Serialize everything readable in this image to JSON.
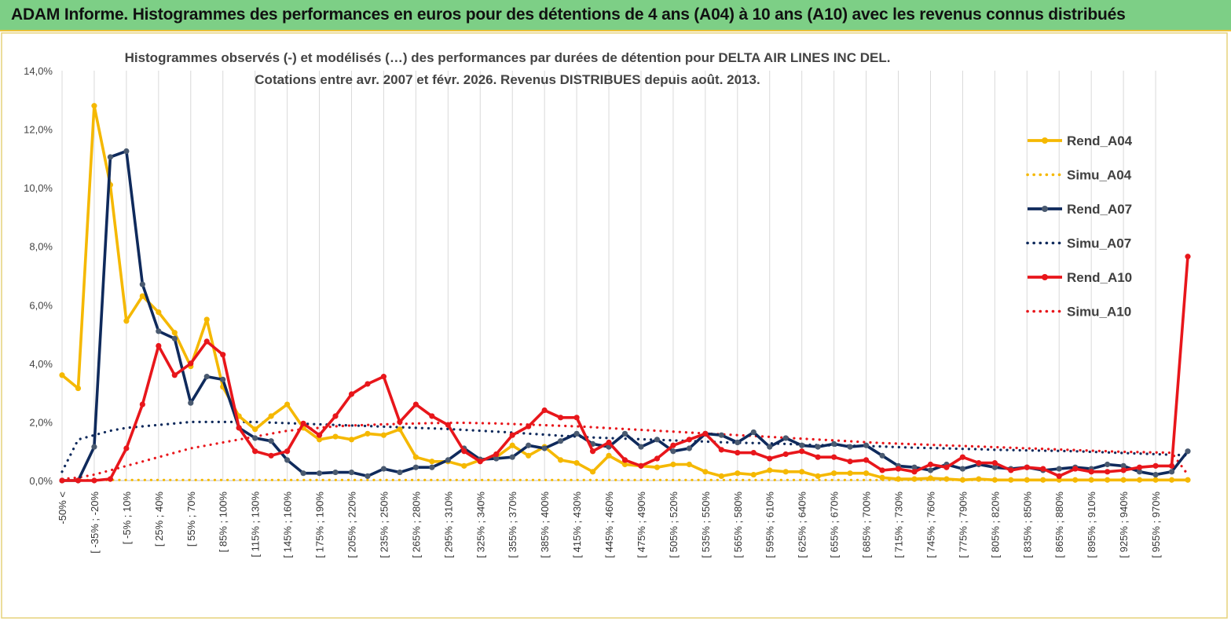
{
  "banner": {
    "title": "ADAM Informe. Histogrammes des performances en euros pour des détentions de 4 ans (A04) à 10 ans (A10) avec les revenus connus distribués"
  },
  "colors": {
    "a04": "#f5b800",
    "a07": "#0f2a5c",
    "a10": "#e8161b",
    "banner": "#7dcf86",
    "grid": "#d9d9d9",
    "marker07": "#4a5a70"
  },
  "chart_data": {
    "type": "line",
    "title": "Histogrammes observés (-) et modélisés (…) des performances par durées de détention pour DELTA AIR LINES INC DEL.",
    "subtitle": "Cotations entre avr. 2007 et févr. 2026. Revenus DISTRIBUES depuis août. 2013.",
    "xlabel": "",
    "ylabel": "",
    "ylim": [
      0,
      14
    ],
    "y_ticks": [
      "0,0%",
      "2,0%",
      "4,0%",
      "6,0%",
      "8,0%",
      "10,0%",
      "12,0%",
      "14,0%"
    ],
    "grid": "vertical",
    "legend_position": "right",
    "x_tick_labels": [
      "-50% <",
      "[ -35% ; -20%",
      "[ -5% ; 10%",
      "[ 25% ; 40%",
      "[ 55% ; 70%",
      "[ 85% ; 100%",
      "[ 115% ; 130%",
      "[ 145% ; 160%",
      "[ 175% ; 190%",
      "[ 205% ; 220%",
      "[ 235% ; 250%",
      "[ 265% ; 280%",
      "[ 295% ; 310%",
      "[ 325% ; 340%",
      "[ 355% ; 370%",
      "[ 385% ; 400%",
      "[ 415% ; 430%",
      "[ 445% ; 460%",
      "[ 475% ; 490%",
      "[ 505% ; 520%",
      "[ 535% ; 550%",
      "[ 565% ; 580%",
      "[ 595% ; 610%",
      "[ 625% ; 640%",
      "[ 655% ; 670%",
      "[ 685% ; 700%",
      "[ 715% ; 730%",
      "[ 745% ; 760%",
      "[ 775% ; 790%",
      "[ 805% ; 820%",
      "[ 835% ; 850%",
      "[ 865% ; 880%",
      "[ 895% ; 910%",
      "[ 925% ; 940%",
      "[ 955% ; 970%"
    ],
    "series": [
      {
        "name": "Rend_A04",
        "style": "solid",
        "color_key": "a04",
        "values": [
          3.6,
          3.15,
          12.8,
          10.1,
          5.45,
          6.3,
          5.75,
          5.05,
          3.9,
          5.5,
          3.2,
          2.2,
          1.75,
          2.2,
          2.6,
          1.8,
          1.4,
          1.5,
          1.4,
          1.6,
          1.55,
          1.75,
          0.8,
          0.65,
          0.65,
          0.5,
          0.7,
          0.8,
          1.2,
          0.85,
          1.15,
          0.7,
          0.6,
          0.3,
          0.85,
          0.55,
          0.5,
          0.45,
          0.55,
          0.55,
          0.3,
          0.15,
          0.25,
          0.2,
          0.35,
          0.3,
          0.3,
          0.15,
          0.25,
          0.25,
          0.25,
          0.1,
          0.05,
          0.05,
          0.08,
          0.05,
          0.02,
          0.05,
          0.02,
          0.02,
          0.02,
          0.02,
          0.02,
          0.02,
          0.02,
          0.02,
          0.02,
          0.02,
          0.02,
          0.02,
          0.02
        ]
      },
      {
        "name": "Simu_A04",
        "style": "dotted",
        "color_key": "a04",
        "values": [
          0.02,
          0.02,
          0.02,
          0.02,
          0.02,
          0.02,
          0.02,
          0.02,
          0.02,
          0.02,
          0.02,
          0.02,
          0.02,
          0.02,
          0.02,
          0.02,
          0.02,
          0.02,
          0.02,
          0.02,
          0.02,
          0.02,
          0.02,
          0.02,
          0.02,
          0.02,
          0.02,
          0.02,
          0.02,
          0.02,
          0.02,
          0.02,
          0.02,
          0.02,
          0.02,
          0.02,
          0.02,
          0.02,
          0.02,
          0.02,
          0.02,
          0.02,
          0.02,
          0.02,
          0.02,
          0.02,
          0.02,
          0.02,
          0.02,
          0.02,
          0.02,
          0.02,
          0.02,
          0.02,
          0.02,
          0.02,
          0.02,
          0.02,
          0.02,
          0.02,
          0.02,
          0.02,
          0.02,
          0.02,
          0.02,
          0.02,
          0.02,
          0.02,
          0.02,
          0.02,
          0.02
        ]
      },
      {
        "name": "Rend_A07",
        "style": "solid",
        "color_key": "a07",
        "values": [
          0.0,
          0.0,
          1.15,
          11.05,
          11.25,
          6.7,
          5.1,
          4.85,
          2.65,
          3.55,
          3.45,
          1.8,
          1.45,
          1.35,
          0.7,
          0.25,
          0.25,
          0.28,
          0.28,
          0.15,
          0.4,
          0.28,
          0.45,
          0.45,
          0.7,
          1.1,
          0.72,
          0.75,
          0.8,
          1.2,
          1.1,
          1.35,
          1.6,
          1.25,
          1.15,
          1.6,
          1.15,
          1.4,
          1.0,
          1.1,
          1.6,
          1.55,
          1.3,
          1.65,
          1.15,
          1.45,
          1.2,
          1.15,
          1.25,
          1.15,
          1.2,
          0.85,
          0.5,
          0.45,
          0.35,
          0.55,
          0.4,
          0.55,
          0.45,
          0.4,
          0.45,
          0.35,
          0.4,
          0.45,
          0.4,
          0.55,
          0.5,
          0.3,
          0.2,
          0.3,
          1.0
        ]
      },
      {
        "name": "Simu_A07",
        "style": "dotted",
        "color_key": "a07",
        "values": [
          0.3,
          1.4,
          1.55,
          1.7,
          1.8,
          1.85,
          1.9,
          1.95,
          2.0,
          2.0,
          2.0,
          2.0,
          2.0,
          1.98,
          1.96,
          1.94,
          1.92,
          1.9,
          1.88,
          1.86,
          1.84,
          1.82,
          1.8,
          1.78,
          1.76,
          1.73,
          1.7,
          1.67,
          1.64,
          1.6,
          1.57,
          1.53,
          1.5,
          1.47,
          1.45,
          1.43,
          1.41,
          1.39,
          1.37,
          1.35,
          1.33,
          1.31,
          1.29,
          1.28,
          1.27,
          1.25,
          1.23,
          1.21,
          1.2,
          1.19,
          1.18,
          1.16,
          1.14,
          1.12,
          1.11,
          1.1,
          1.08,
          1.07,
          1.05,
          1.04,
          1.03,
          1.02,
          1.01,
          1.0,
          0.98,
          0.96,
          0.94,
          0.92,
          0.9,
          0.88,
          0.86
        ]
      },
      {
        "name": "Rend_A10",
        "style": "solid",
        "color_key": "a10",
        "values": [
          0.0,
          0.0,
          0.0,
          0.05,
          1.1,
          2.6,
          4.6,
          3.6,
          4.0,
          4.75,
          4.3,
          1.8,
          1.0,
          0.85,
          1.0,
          1.95,
          1.55,
          2.2,
          2.95,
          3.3,
          3.55,
          2.0,
          2.6,
          2.2,
          1.9,
          1.0,
          0.65,
          0.9,
          1.55,
          1.85,
          2.4,
          2.15,
          2.15,
          1.0,
          1.3,
          0.7,
          0.5,
          0.75,
          1.2,
          1.4,
          1.6,
          1.05,
          0.95,
          0.95,
          0.75,
          0.9,
          1.0,
          0.8,
          0.8,
          0.65,
          0.7,
          0.35,
          0.4,
          0.3,
          0.55,
          0.45,
          0.8,
          0.6,
          0.6,
          0.35,
          0.45,
          0.4,
          0.15,
          0.4,
          0.3,
          0.3,
          0.35,
          0.45,
          0.5,
          0.5,
          7.65
        ]
      },
      {
        "name": "Simu_A10",
        "style": "dotted",
        "color_key": "a10",
        "values": [
          0.05,
          0.1,
          0.2,
          0.35,
          0.5,
          0.65,
          0.8,
          0.95,
          1.1,
          1.2,
          1.3,
          1.4,
          1.5,
          1.6,
          1.7,
          1.75,
          1.8,
          1.85,
          1.88,
          1.9,
          1.92,
          1.93,
          1.95,
          1.96,
          1.97,
          1.97,
          1.96,
          1.95,
          1.93,
          1.91,
          1.89,
          1.87,
          1.85,
          1.82,
          1.79,
          1.76,
          1.73,
          1.7,
          1.67,
          1.64,
          1.61,
          1.58,
          1.55,
          1.52,
          1.49,
          1.46,
          1.43,
          1.4,
          1.37,
          1.34,
          1.31,
          1.28,
          1.26,
          1.24,
          1.22,
          1.2,
          1.18,
          1.16,
          1.14,
          1.12,
          1.1,
          1.08,
          1.06,
          1.04,
          1.02,
          1.0,
          0.98,
          0.97,
          0.96,
          0.95,
          0.2
        ]
      }
    ]
  }
}
